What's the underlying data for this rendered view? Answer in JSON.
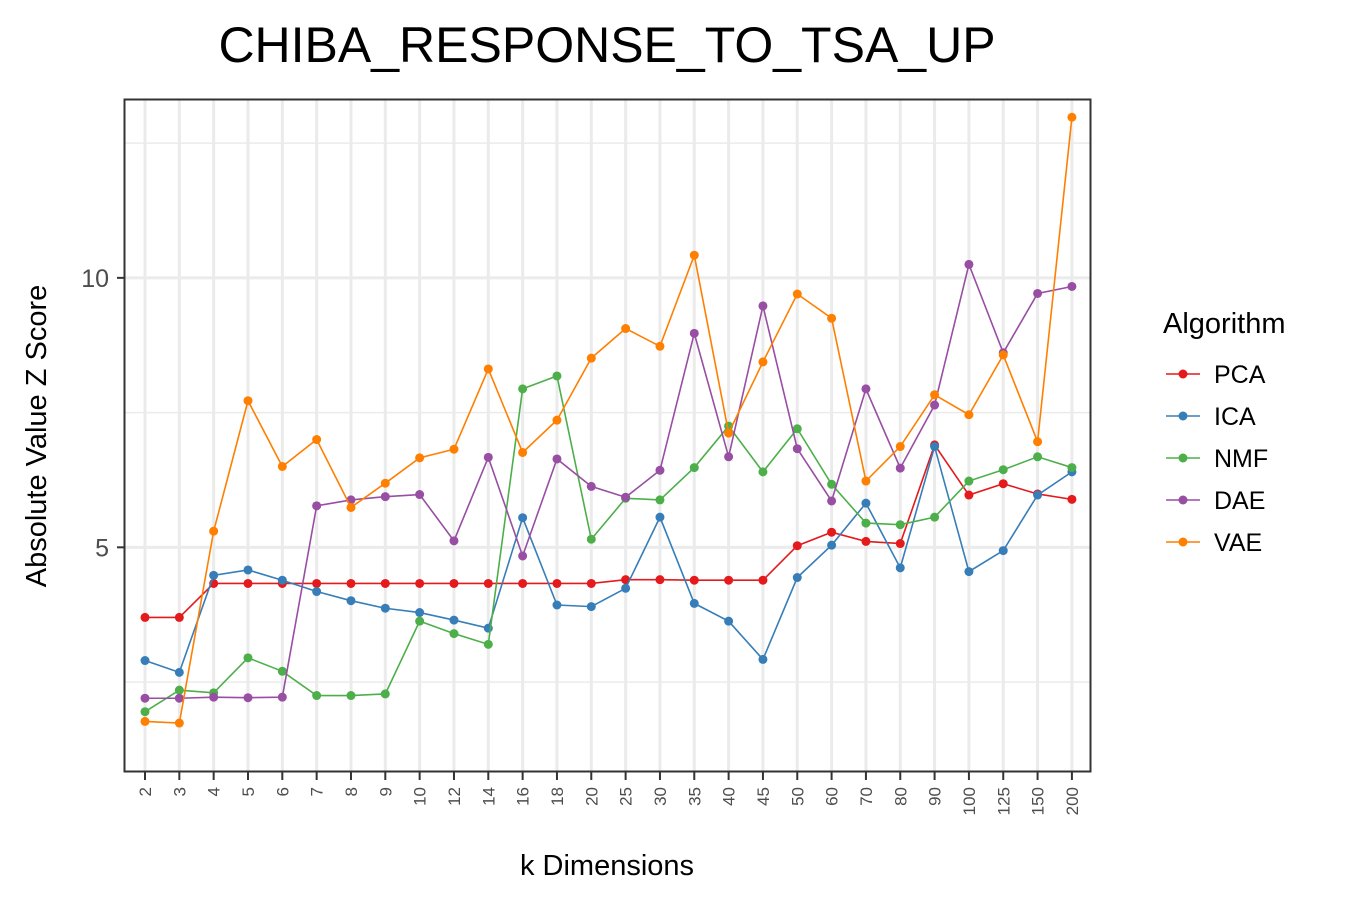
{
  "chart_data": {
    "type": "line",
    "title": "CHIBA_RESPONSE_TO_TSA_UP",
    "xlabel": "k Dimensions",
    "ylabel": "Absolute Value Z Score",
    "categories": [
      "2",
      "3",
      "4",
      "5",
      "6",
      "7",
      "8",
      "9",
      "10",
      "12",
      "14",
      "16",
      "18",
      "20",
      "25",
      "30",
      "35",
      "40",
      "45",
      "50",
      "60",
      "70",
      "80",
      "90",
      "100",
      "125",
      "150",
      "200"
    ],
    "y_ticks": [
      5,
      10
    ],
    "ylim": [
      0.85,
      13.3
    ],
    "grid": true,
    "legend_title": "Algorithm",
    "legend_position": "right",
    "series": [
      {
        "name": "PCA",
        "color": "#e41a1c",
        "values": [
          3.7,
          3.7,
          4.33,
          4.33,
          4.33,
          4.33,
          4.33,
          4.33,
          4.33,
          4.33,
          4.33,
          4.33,
          4.33,
          4.33,
          4.4,
          4.4,
          4.39,
          4.39,
          4.39,
          5.03,
          5.28,
          5.11,
          5.07,
          6.9,
          5.97,
          6.18,
          5.99,
          5.89
        ]
      },
      {
        "name": "ICA",
        "color": "#377eb8",
        "values": [
          2.9,
          2.68,
          4.48,
          4.58,
          4.39,
          4.18,
          4.01,
          3.87,
          3.79,
          3.65,
          3.5,
          5.55,
          3.93,
          3.9,
          4.24,
          5.56,
          3.96,
          3.63,
          2.92,
          4.44,
          5.04,
          5.82,
          4.62,
          6.87,
          4.55,
          4.94,
          5.97,
          6.4
        ]
      },
      {
        "name": "NMF",
        "color": "#4daf4a",
        "values": [
          1.95,
          2.35,
          2.3,
          2.95,
          2.7,
          2.25,
          2.25,
          2.28,
          3.63,
          3.4,
          3.2,
          7.94,
          8.18,
          5.15,
          5.91,
          5.88,
          6.48,
          7.25,
          6.4,
          7.2,
          6.17,
          5.45,
          5.42,
          5.56,
          6.23,
          6.44,
          6.68,
          6.48
        ]
      },
      {
        "name": "DAE",
        "color": "#984ea3",
        "values": [
          2.2,
          2.2,
          2.22,
          2.21,
          2.22,
          5.77,
          5.88,
          5.94,
          5.98,
          5.12,
          6.67,
          4.84,
          6.64,
          6.13,
          5.93,
          6.43,
          8.97,
          6.68,
          9.48,
          6.83,
          5.86,
          7.94,
          6.47,
          7.64,
          10.25,
          8.61,
          9.71,
          9.84
        ]
      },
      {
        "name": "VAE",
        "color": "#ff7f00",
        "values": [
          1.77,
          1.74,
          5.3,
          7.72,
          6.5,
          7.0,
          5.74,
          6.19,
          6.66,
          6.82,
          8.31,
          6.76,
          7.36,
          8.51,
          9.06,
          8.73,
          10.42,
          7.12,
          8.44,
          9.7,
          9.25,
          6.23,
          6.87,
          7.83,
          7.46,
          8.57,
          6.96,
          12.98
        ]
      }
    ]
  }
}
